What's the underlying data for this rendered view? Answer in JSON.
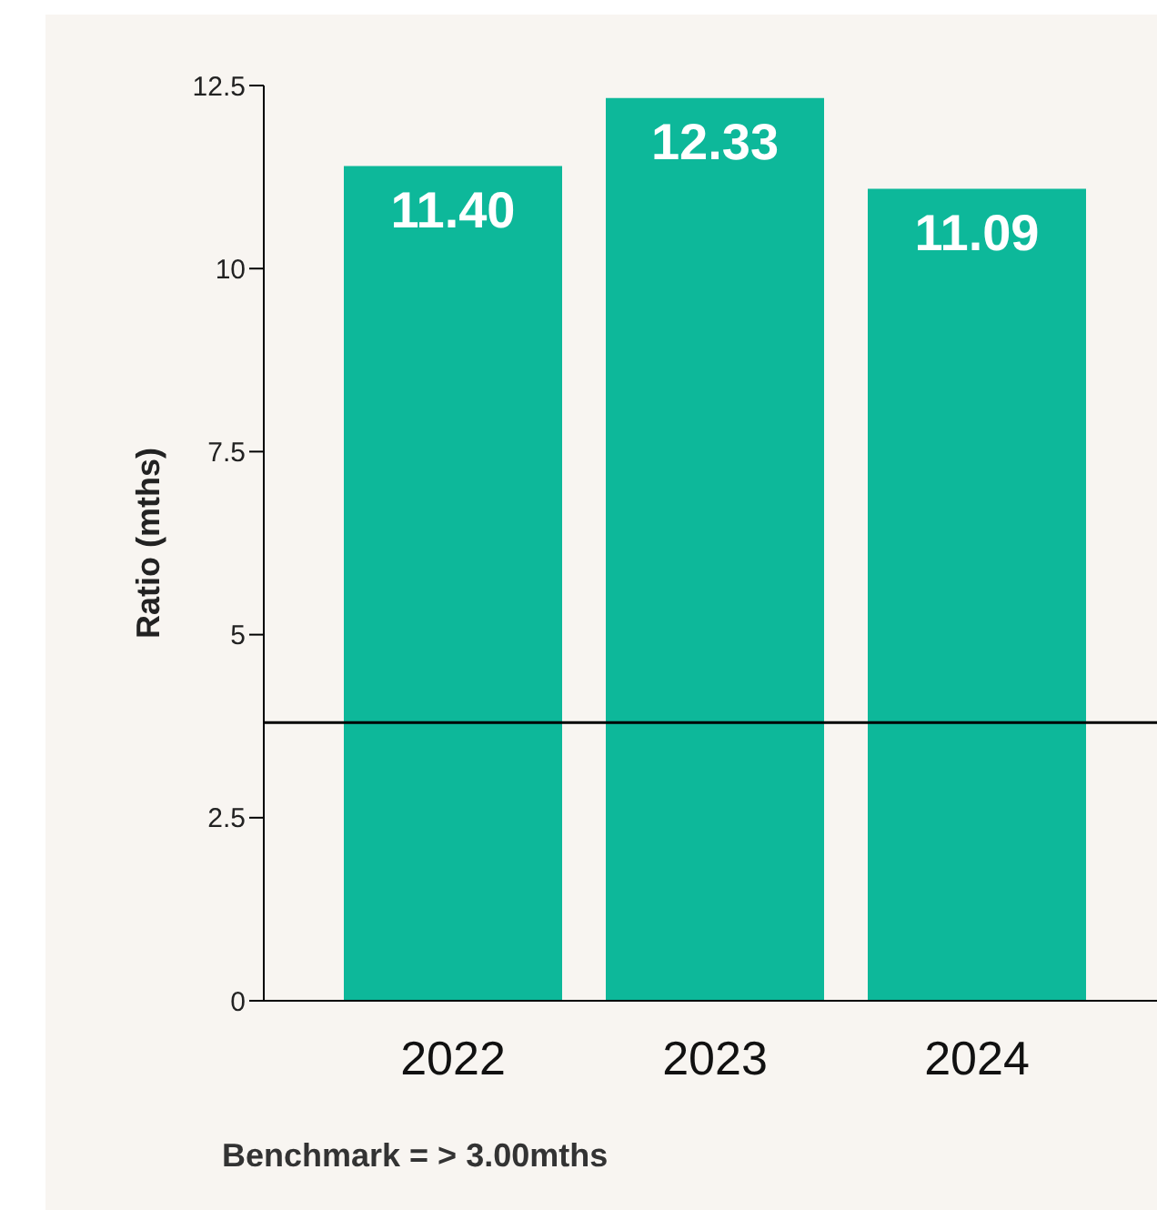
{
  "chart_data": {
    "type": "bar",
    "ylabel": "Ratio (mths)",
    "categories": [
      "2022",
      "2023",
      "2024"
    ],
    "values": [
      11.4,
      12.33,
      11.09
    ],
    "color": "#0db89a",
    "ylim": [
      0,
      12.5
    ],
    "yticks": [
      0,
      2.5,
      5,
      7.5,
      10,
      12.5
    ],
    "grid": false,
    "value_labels": [
      "11.40",
      "12.33",
      "11.09"
    ],
    "ref_lines": [
      {
        "axis": "y",
        "value": 3.8,
        "color": "#000000"
      }
    ],
    "annotations": [
      "Benchmark = > 3.00mths"
    ]
  }
}
